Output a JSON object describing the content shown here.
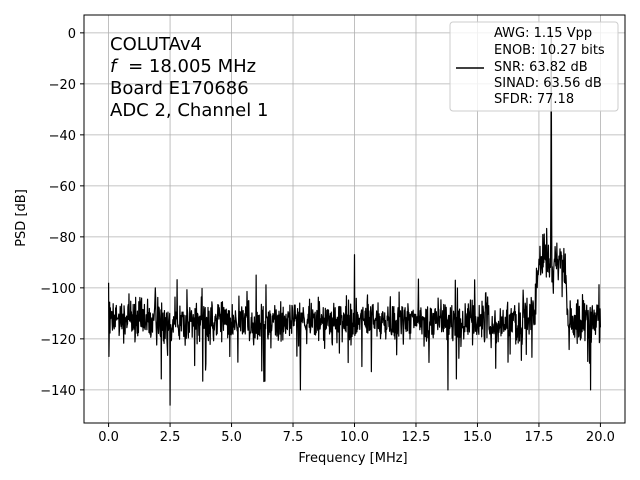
{
  "chart_data": {
    "type": "line",
    "xlabel": "Frequency [MHz]",
    "ylabel": "PSD [dB]",
    "xlim": [
      -1.0,
      21.0
    ],
    "ylim": [
      -153,
      7
    ],
    "xticks": [
      "0.0",
      "2.5",
      "5.0",
      "7.5",
      "10.0",
      "12.5",
      "15.0",
      "17.5",
      "20.0"
    ],
    "xtick_values": [
      0,
      2.5,
      5,
      7.5,
      10,
      12.5,
      15,
      17.5,
      20
    ],
    "yticks": [
      "0",
      "−20",
      "−40",
      "−60",
      "−80",
      "−100",
      "−120",
      "−140"
    ],
    "ytick_values": [
      0,
      -20,
      -40,
      -60,
      -80,
      -100,
      -120,
      -140
    ],
    "grid": true,
    "info_lines": [
      "COLUTAv4",
      "= 18.005 MHz",
      "Board E170686",
      "ADC 2, Channel 1"
    ],
    "info_italic_symbol": "f",
    "legend_position": "top-right",
    "legend_lines": [
      "AWG: 1.15 Vpp",
      "ENOB: 10.27 bits",
      "SNR: 63.82 dB",
      "SINAD: 63.56 dB",
      "SFDR: 77.18"
    ],
    "series": [
      {
        "color": "#000000",
        "fundamental_mhz": 18.005,
        "fundamental_db": 0,
        "noise_floor_db": -113,
        "noise_band": {
          "x_start": 17.3,
          "x_end": 18.7,
          "level_db": -90
        },
        "spurs": [
          {
            "x": 0.0,
            "y": -98
          },
          {
            "x": 1.9,
            "y": -100
          },
          {
            "x": 2.5,
            "y": -146
          },
          {
            "x": 6.0,
            "y": -95
          },
          {
            "x": 7.8,
            "y": -140
          },
          {
            "x": 10.0,
            "y": -87
          },
          {
            "x": 13.8,
            "y": -140
          },
          {
            "x": 14.1,
            "y": -97
          },
          {
            "x": 19.6,
            "y": -140
          }
        ]
      }
    ]
  }
}
